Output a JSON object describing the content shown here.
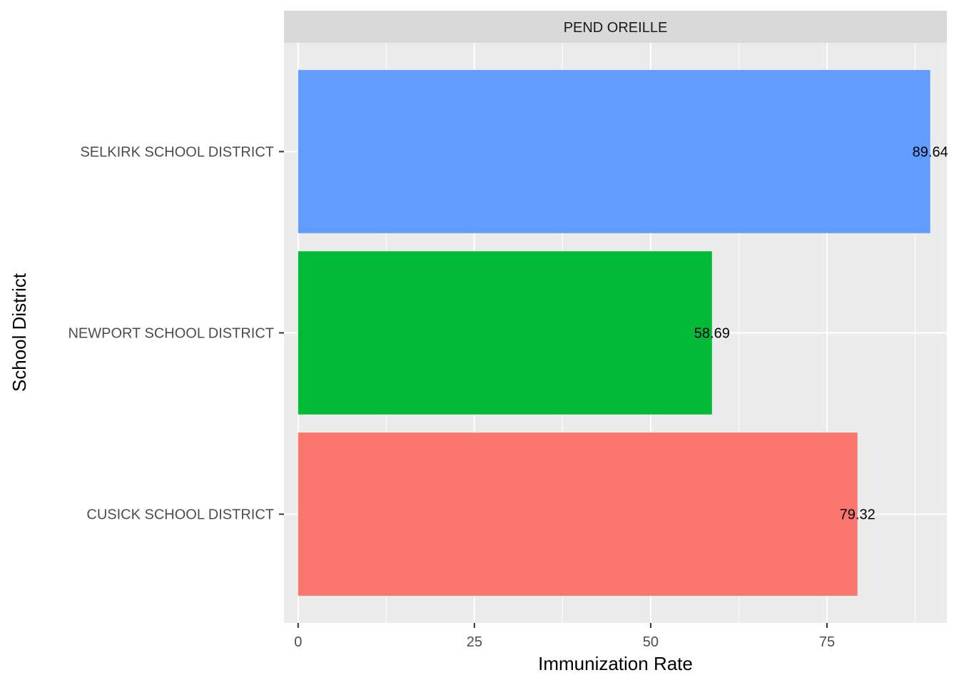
{
  "chart_data": {
    "type": "bar",
    "orientation": "horizontal",
    "facet": "PEND OREILLE",
    "categories": [
      "CUSICK SCHOOL DISTRICT",
      "NEWPORT SCHOOL DISTRICT",
      "SELKIRK SCHOOL DISTRICT"
    ],
    "values": [
      79.32,
      58.69,
      89.64
    ],
    "value_labels": [
      "79.32",
      "58.69",
      "89.64"
    ],
    "colors": [
      "#F8766D",
      "#00BA38",
      "#619CFF"
    ],
    "xlabel": "Immunization Rate",
    "ylabel": "School District",
    "xlim": [
      -2,
      92
    ],
    "xticks": [
      0,
      25,
      50,
      75
    ],
    "xtick_labels": [
      "0",
      "25",
      "50",
      "75"
    ],
    "grid": true,
    "legend": "none"
  }
}
